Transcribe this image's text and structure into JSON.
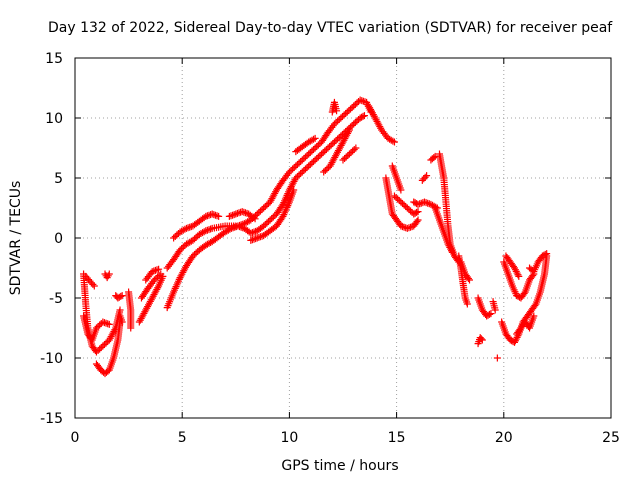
{
  "chart_data": {
    "type": "scatter",
    "title": "Day 132 of 2022, Sidereal Day-to-day VTEC variation (SDTVAR) for receiver peaf",
    "xlabel": "GPS time / hours",
    "ylabel": "SDTVAR / TECUs",
    "xlim": [
      0,
      25
    ],
    "ylim": [
      -15,
      15
    ],
    "xticks": [
      0,
      5,
      10,
      15,
      20,
      25
    ],
    "yticks": [
      -15,
      -10,
      -5,
      0,
      5,
      10,
      15
    ],
    "xtick_labels": [
      "0",
      "5",
      "10",
      "15",
      "20",
      "25"
    ],
    "ytick_labels": [
      "-15",
      "-10",
      "-5",
      "0",
      "5",
      "10",
      "15"
    ],
    "grid": true,
    "marker": "plus",
    "color": "#ff0000",
    "tracks": [
      [
        [
          0.4,
          -3.0
        ],
        [
          0.5,
          -5.5
        ],
        [
          0.6,
          -7.5
        ],
        [
          0.8,
          -9.0
        ],
        [
          1.0,
          -9.5
        ],
        [
          1.3,
          -9.0
        ],
        [
          1.6,
          -8.5
        ],
        [
          1.9,
          -7.5
        ],
        [
          2.1,
          -6.0
        ]
      ],
      [
        [
          0.4,
          -6.5
        ],
        [
          0.6,
          -8.0
        ],
        [
          0.8,
          -8.5
        ],
        [
          1.0,
          -7.5
        ],
        [
          1.3,
          -7.0
        ],
        [
          1.6,
          -7.2
        ]
      ],
      [
        [
          0.5,
          -3.2
        ],
        [
          0.7,
          -3.6
        ],
        [
          0.9,
          -4.0
        ]
      ],
      [
        [
          1.0,
          -10.5
        ],
        [
          1.2,
          -11.0
        ],
        [
          1.4,
          -11.3
        ],
        [
          1.6,
          -11.0
        ],
        [
          1.8,
          -10.0
        ],
        [
          2.0,
          -8.5
        ],
        [
          2.1,
          -7.0
        ]
      ],
      [
        [
          1.4,
          -3.0
        ],
        [
          1.5,
          -3.3
        ],
        [
          1.6,
          -3.0
        ]
      ],
      [
        [
          1.9,
          -4.8
        ],
        [
          2.0,
          -5.0
        ],
        [
          2.2,
          -4.8
        ]
      ],
      [
        [
          2.1,
          -6.5
        ],
        [
          2.2,
          -7.0
        ]
      ],
      [
        [
          2.5,
          -4.5
        ],
        [
          2.6,
          -6.0
        ],
        [
          2.6,
          -7.5
        ]
      ],
      [
        [
          3.0,
          -7.0
        ],
        [
          3.3,
          -6.0
        ],
        [
          3.6,
          -5.0
        ],
        [
          3.9,
          -4.0
        ],
        [
          4.1,
          -3.2
        ]
      ],
      [
        [
          3.1,
          -5.0
        ],
        [
          3.4,
          -4.2
        ],
        [
          3.7,
          -3.5
        ],
        [
          4.0,
          -3.0
        ]
      ],
      [
        [
          3.3,
          -3.5
        ],
        [
          3.6,
          -2.8
        ],
        [
          3.9,
          -2.6
        ]
      ],
      [
        [
          4.3,
          -2.5
        ],
        [
          4.6,
          -1.8
        ],
        [
          4.9,
          -1.0
        ],
        [
          5.2,
          -0.5
        ],
        [
          5.5,
          -0.2
        ],
        [
          5.8,
          0.3
        ],
        [
          6.1,
          0.6
        ],
        [
          6.4,
          0.8
        ],
        [
          6.7,
          0.9
        ],
        [
          7.0,
          1.0
        ],
        [
          7.3,
          1.0
        ],
        [
          7.6,
          1.0
        ],
        [
          7.9,
          1.2
        ],
        [
          8.2,
          1.5
        ],
        [
          8.5,
          2.0
        ],
        [
          8.8,
          2.5
        ],
        [
          9.1,
          3.0
        ],
        [
          9.4,
          4.0
        ],
        [
          9.7,
          4.8
        ],
        [
          10.0,
          5.5
        ],
        [
          10.3,
          6.0
        ],
        [
          10.6,
          6.5
        ],
        [
          10.9,
          7.0
        ],
        [
          11.2,
          7.5
        ],
        [
          11.5,
          8.0
        ],
        [
          11.8,
          8.8
        ],
        [
          12.1,
          9.5
        ],
        [
          12.4,
          10.0
        ],
        [
          12.7,
          10.5
        ],
        [
          13.0,
          11.0
        ],
        [
          13.3,
          11.5
        ],
        [
          13.6,
          11.3
        ],
        [
          13.8,
          10.5
        ]
      ],
      [
        [
          4.3,
          -5.8
        ],
        [
          4.6,
          -4.5
        ],
        [
          4.9,
          -3.3
        ],
        [
          5.2,
          -2.3
        ],
        [
          5.5,
          -1.5
        ],
        [
          5.8,
          -1.0
        ],
        [
          6.1,
          -0.6
        ],
        [
          6.4,
          -0.3
        ],
        [
          6.7,
          0.1
        ],
        [
          7.0,
          0.5
        ],
        [
          7.3,
          0.8
        ],
        [
          7.6,
          1.0
        ],
        [
          7.9,
          0.8
        ],
        [
          8.2,
          0.4
        ],
        [
          8.5,
          0.6
        ],
        [
          8.8,
          1.0
        ],
        [
          9.1,
          1.5
        ],
        [
          9.4,
          2.0
        ],
        [
          9.7,
          2.8
        ],
        [
          10.0,
          4.0
        ],
        [
          10.3,
          5.0
        ],
        [
          10.6,
          5.5
        ],
        [
          10.9,
          6.0
        ],
        [
          11.2,
          6.5
        ],
        [
          11.5,
          7.0
        ],
        [
          11.8,
          7.5
        ],
        [
          12.1,
          8.0
        ],
        [
          12.4,
          8.5
        ],
        [
          12.7,
          9.0
        ],
        [
          13.0,
          9.5
        ],
        [
          13.3,
          10.0
        ],
        [
          13.5,
          10.2
        ]
      ],
      [
        [
          4.6,
          0.0
        ],
        [
          4.9,
          0.5
        ],
        [
          5.2,
          0.8
        ],
        [
          5.5,
          1.0
        ],
        [
          5.8,
          1.4
        ],
        [
          6.1,
          1.8
        ],
        [
          6.4,
          2.0
        ],
        [
          6.7,
          1.8
        ]
      ],
      [
        [
          7.2,
          1.8
        ],
        [
          7.5,
          2.0
        ],
        [
          7.8,
          2.2
        ],
        [
          8.1,
          2.0
        ],
        [
          8.4,
          1.6
        ]
      ],
      [
        [
          8.2,
          -0.2
        ],
        [
          8.5,
          0.0
        ],
        [
          8.8,
          0.2
        ],
        [
          9.1,
          0.6
        ],
        [
          9.4,
          1.0
        ],
        [
          9.7,
          1.8
        ],
        [
          10.0,
          3.0
        ],
        [
          10.2,
          4.0
        ]
      ],
      [
        [
          10.3,
          7.2
        ],
        [
          10.6,
          7.6
        ],
        [
          10.9,
          8.0
        ],
        [
          11.2,
          8.3
        ]
      ],
      [
        [
          11.6,
          5.5
        ],
        [
          11.9,
          6.0
        ],
        [
          12.2,
          7.0
        ],
        [
          12.5,
          8.0
        ],
        [
          12.8,
          9.0
        ]
      ],
      [
        [
          12.0,
          10.5
        ],
        [
          12.1,
          11.3
        ],
        [
          12.2,
          10.6
        ]
      ],
      [
        [
          12.5,
          6.5
        ],
        [
          12.8,
          7.0
        ],
        [
          13.1,
          7.5
        ]
      ],
      [
        [
          13.7,
          11.0
        ],
        [
          14.0,
          10.0
        ],
        [
          14.3,
          9.0
        ],
        [
          14.6,
          8.3
        ],
        [
          14.9,
          8.0
        ]
      ],
      [
        [
          14.5,
          5.0
        ],
        [
          14.6,
          4.0
        ],
        [
          14.7,
          3.0
        ],
        [
          14.8,
          2.0
        ],
        [
          15.0,
          1.5
        ],
        [
          15.2,
          1.0
        ],
        [
          15.5,
          0.8
        ],
        [
          15.8,
          1.0
        ],
        [
          16.0,
          1.5
        ]
      ],
      [
        [
          14.9,
          3.5
        ],
        [
          15.2,
          3.0
        ],
        [
          15.5,
          2.5
        ],
        [
          15.8,
          2.0
        ],
        [
          16.0,
          2.2
        ]
      ],
      [
        [
          14.8,
          6.0
        ],
        [
          15.0,
          5.0
        ],
        [
          15.2,
          4.0
        ]
      ],
      [
        [
          15.8,
          3.0
        ],
        [
          16.0,
          2.8
        ],
        [
          16.3,
          3.0
        ],
        [
          16.6,
          2.8
        ],
        [
          16.9,
          2.5
        ]
      ],
      [
        [
          16.2,
          4.8
        ],
        [
          16.4,
          5.2
        ]
      ],
      [
        [
          16.6,
          6.5
        ],
        [
          16.8,
          6.8
        ]
      ],
      [
        [
          17.0,
          7.0
        ],
        [
          17.1,
          6.0
        ],
        [
          17.2,
          5.0
        ],
        [
          17.3,
          3.0
        ],
        [
          17.4,
          1.0
        ],
        [
          17.5,
          -0.5
        ],
        [
          17.7,
          -1.5
        ],
        [
          17.9,
          -2.0
        ]
      ],
      [
        [
          16.8,
          2.5
        ],
        [
          17.0,
          1.5
        ],
        [
          17.2,
          0.5
        ],
        [
          17.4,
          -0.5
        ],
        [
          17.6,
          -1.2
        ]
      ],
      [
        [
          17.9,
          -1.5
        ],
        [
          18.0,
          -2.5
        ],
        [
          18.1,
          -3.8
        ],
        [
          18.2,
          -5.0
        ],
        [
          18.3,
          -5.5
        ]
      ],
      [
        [
          18.0,
          -2.0
        ],
        [
          18.2,
          -3.0
        ],
        [
          18.4,
          -3.5
        ]
      ],
      [
        [
          18.8,
          -5.0
        ],
        [
          19.0,
          -6.0
        ],
        [
          19.2,
          -6.5
        ],
        [
          19.4,
          -6.3
        ]
      ],
      [
        [
          18.8,
          -8.8
        ],
        [
          18.9,
          -8.3
        ],
        [
          19.0,
          -8.5
        ]
      ],
      [
        [
          19.5,
          -5.3
        ],
        [
          19.6,
          -6.0
        ]
      ],
      [
        [
          19.7,
          -10.0
        ]
      ],
      [
        [
          19.9,
          -7.0
        ],
        [
          20.1,
          -8.0
        ],
        [
          20.3,
          -8.5
        ],
        [
          20.5,
          -8.7
        ],
        [
          20.7,
          -8.0
        ],
        [
          20.9,
          -7.0
        ],
        [
          21.1,
          -6.5
        ],
        [
          21.3,
          -6.0
        ],
        [
          21.5,
          -5.5
        ],
        [
          21.7,
          -4.5
        ],
        [
          21.9,
          -3.0
        ],
        [
          22.0,
          -1.5
        ]
      ],
      [
        [
          20.0,
          -2.0
        ],
        [
          20.2,
          -3.0
        ],
        [
          20.4,
          -4.0
        ],
        [
          20.6,
          -4.8
        ],
        [
          20.8,
          -5.0
        ],
        [
          21.0,
          -4.5
        ],
        [
          21.2,
          -3.5
        ],
        [
          21.4,
          -3.0
        ]
      ],
      [
        [
          20.1,
          -1.5
        ],
        [
          20.3,
          -2.0
        ],
        [
          20.5,
          -2.5
        ],
        [
          20.7,
          -3.2
        ]
      ],
      [
        [
          20.6,
          -8.0
        ],
        [
          20.8,
          -7.5
        ],
        [
          21.0,
          -7.0
        ],
        [
          21.2,
          -7.5
        ],
        [
          21.4,
          -6.5
        ]
      ],
      [
        [
          21.2,
          -2.5
        ],
        [
          21.4,
          -2.8
        ],
        [
          21.6,
          -2.0
        ],
        [
          21.8,
          -1.5
        ],
        [
          22.0,
          -1.3
        ]
      ]
    ]
  }
}
